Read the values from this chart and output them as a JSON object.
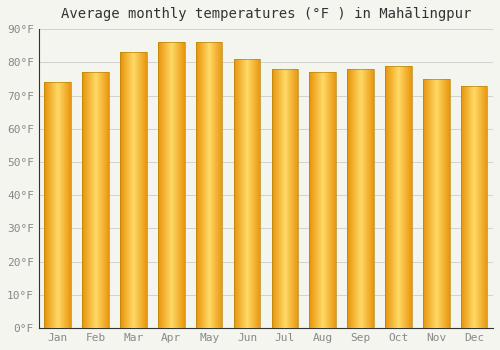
{
  "title": "Average monthly temperatures (°F ) in Mahālingpur",
  "months": [
    "Jan",
    "Feb",
    "Mar",
    "Apr",
    "May",
    "Jun",
    "Jul",
    "Aug",
    "Sep",
    "Oct",
    "Nov",
    "Dec"
  ],
  "values": [
    74,
    77,
    83,
    86,
    86,
    81,
    78,
    77,
    78,
    79,
    75,
    73
  ],
  "bar_color_center": "#FFD966",
  "bar_color_edge": "#E8930A",
  "bar_outline_color": "#B8860B",
  "ylim": [
    0,
    90
  ],
  "yticks": [
    0,
    10,
    20,
    30,
    40,
    50,
    60,
    70,
    80,
    90
  ],
  "ytick_labels": [
    "0°F",
    "10°F",
    "20°F",
    "30°F",
    "40°F",
    "50°F",
    "60°F",
    "70°F",
    "80°F",
    "90°F"
  ],
  "background_color": "#F5F5F0",
  "grid_color": "#CCCCCC",
  "title_fontsize": 10,
  "tick_fontsize": 8,
  "bar_width": 0.7
}
